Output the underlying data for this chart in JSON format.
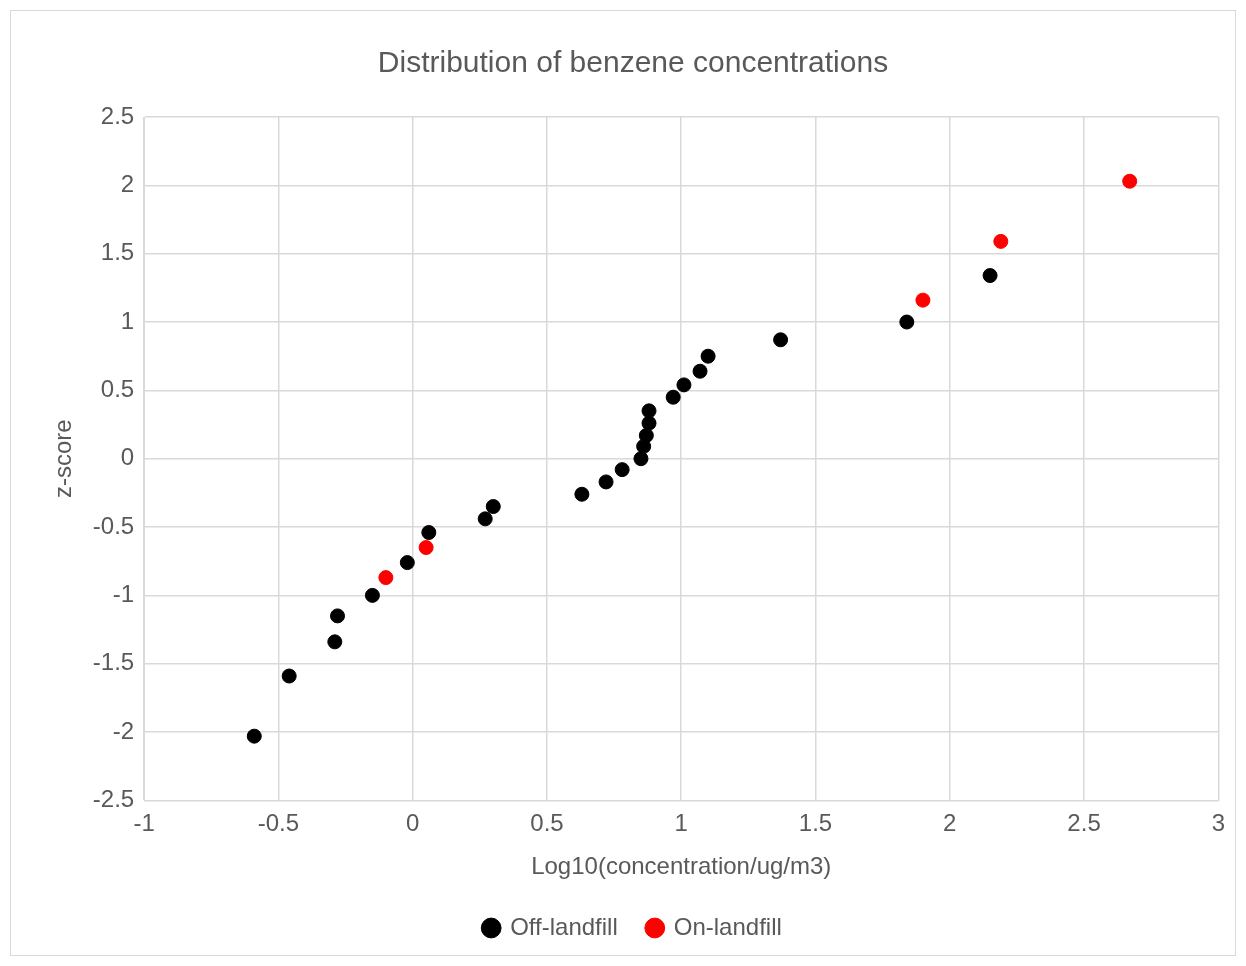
{
  "chart_data": {
    "type": "scatter",
    "title": "Distribution of benzene concentrations",
    "xlabel": "Log10(concentration/ug/m3)",
    "ylabel": "z-score",
    "xlim": [
      -1,
      3
    ],
    "xticks": [
      -1,
      -0.5,
      0,
      0.5,
      1,
      1.5,
      2,
      2.5,
      3
    ],
    "ylim": [
      -2.5,
      2.5
    ],
    "yticks": [
      -2.5,
      -2,
      -1.5,
      -1,
      -0.5,
      0,
      0.5,
      1,
      1.5,
      2,
      2.5
    ],
    "grid": true,
    "legend": "bottom",
    "marker": "circle",
    "series": [
      {
        "name": "Off-landfill",
        "color": "#000000",
        "x": [
          -0.59,
          -0.46,
          -0.29,
          -0.28,
          -0.15,
          -0.02,
          0.06,
          0.27,
          0.3,
          0.63,
          0.72,
          0.78,
          0.85,
          0.86,
          0.87,
          0.88,
          0.88,
          0.97,
          1.01,
          1.07,
          1.1,
          1.37,
          1.84,
          2.15
        ],
        "values": [
          -2.03,
          -1.59,
          -1.34,
          -1.15,
          -1.0,
          -0.76,
          -0.54,
          -0.44,
          -0.35,
          -0.26,
          -0.17,
          -0.08,
          0.0,
          0.09,
          0.17,
          0.26,
          0.35,
          0.45,
          0.54,
          0.64,
          0.75,
          0.87,
          1.0,
          1.34
        ]
      },
      {
        "name": "On-landfill",
        "color": "#ff0000",
        "x": [
          -0.1,
          0.05,
          1.9,
          2.19,
          2.67
        ],
        "values": [
          -0.87,
          -0.65,
          1.16,
          1.59,
          2.03
        ]
      }
    ]
  }
}
